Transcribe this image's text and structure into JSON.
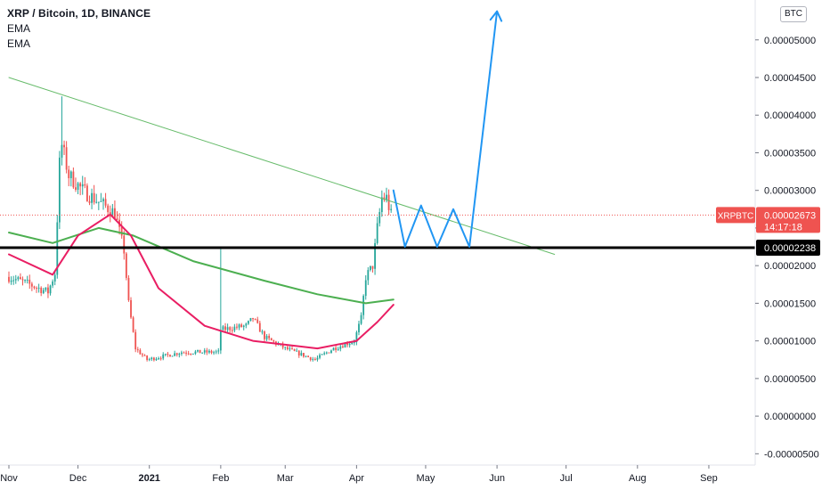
{
  "header": {
    "title": "XRP / Bitcoin, 1D, BINANCE",
    "indicators": [
      "EMA",
      "EMA"
    ],
    "currency": "BTC"
  },
  "price_scale": {
    "ticks": [
      "0.00005000",
      "0.00004500",
      "0.00004000",
      "0.00003500",
      "0.00003000",
      "0.00002500",
      "0.00002000",
      "0.00001500",
      "0.00001000",
      "0.00000500",
      "0.00000000",
      "-0.00000500"
    ],
    "last_price_label": "XRPBTC",
    "last_price": "0.00002673",
    "countdown": "14:17:18",
    "level_price": "0.00002238"
  },
  "time_scale": {
    "labels": [
      "Nov",
      "Dec",
      "2021",
      "Feb",
      "Mar",
      "Apr",
      "May",
      "Jun",
      "Jul",
      "Aug",
      "Sep"
    ]
  },
  "colors": {
    "up": "#26a69a",
    "down": "#ef5350",
    "ema_fast": "#e91e63",
    "ema_slow": "#4caf50",
    "trendline": "#66bb6a",
    "level": "#000000",
    "projection": "#2196f3",
    "price_line": "#ef5350"
  },
  "chart_data": {
    "type": "candlestick",
    "title": "XRP / Bitcoin, 1D, BINANCE",
    "y_unit": "BTC",
    "ylim": [
      -6.5e-06,
      5.53e-05
    ],
    "grid": false,
    "xlim": [
      "2020-11-01",
      "2021-09-25"
    ],
    "ohlc_anchors": [
      {
        "date": "2020-11-01",
        "close": 1.85e-05
      },
      {
        "date": "2020-11-10",
        "close": 1.75e-05
      },
      {
        "date": "2020-11-18",
        "close": 1.65e-05
      },
      {
        "date": "2020-11-21",
        "close": 1.9e-05
      },
      {
        "date": "2020-11-23",
        "close": 3.35e-05
      },
      {
        "date": "2020-11-24",
        "close": 3.6e-05
      },
      {
        "date": "2020-11-27",
        "close": 3.2e-05
      },
      {
        "date": "2020-12-03",
        "close": 3e-05
      },
      {
        "date": "2020-12-10",
        "close": 2.85e-05
      },
      {
        "date": "2020-12-17",
        "close": 2.7e-05
      },
      {
        "date": "2020-12-21",
        "close": 2.2e-05
      },
      {
        "date": "2020-12-23",
        "close": 1.5e-05
      },
      {
        "date": "2020-12-26",
        "close": 9e-06
      },
      {
        "date": "2020-12-31",
        "close": 7.5e-06
      },
      {
        "date": "2021-01-15",
        "close": 8.5e-06
      },
      {
        "date": "2021-01-31",
        "close": 8.5e-06
      },
      {
        "date": "2021-02-01",
        "close": 1.15e-05
      },
      {
        "date": "2021-02-12",
        "close": 1.2e-05
      },
      {
        "date": "2021-02-15",
        "close": 1.3e-05
      },
      {
        "date": "2021-02-20",
        "close": 1.05e-05
      },
      {
        "date": "2021-03-01",
        "close": 9e-06
      },
      {
        "date": "2021-03-14",
        "close": 7.5e-06
      },
      {
        "date": "2021-03-22",
        "close": 9e-06
      },
      {
        "date": "2021-03-31",
        "close": 1e-05
      },
      {
        "date": "2021-04-03",
        "close": 1.3e-05
      },
      {
        "date": "2021-04-05",
        "close": 1.85e-05
      },
      {
        "date": "2021-04-08",
        "close": 2e-05
      },
      {
        "date": "2021-04-10",
        "close": 2.5e-05
      },
      {
        "date": "2021-04-12",
        "close": 2.9e-05
      },
      {
        "date": "2021-04-14",
        "close": 2.9e-05
      },
      {
        "date": "2021-04-16",
        "close": 2.67e-05
      }
    ],
    "spikes": [
      {
        "date": "2020-11-24",
        "high": 4.25e-05
      },
      {
        "date": "2021-02-01",
        "high": 2.22e-05
      }
    ],
    "ema_fast": [
      {
        "date": "2020-11-01",
        "value": 2.15e-05
      },
      {
        "date": "2020-11-20",
        "value": 1.88e-05
      },
      {
        "date": "2020-12-01",
        "value": 2.4e-05
      },
      {
        "date": "2020-12-15",
        "value": 2.68e-05
      },
      {
        "date": "2020-12-24",
        "value": 2.4e-05
      },
      {
        "date": "2021-01-05",
        "value": 1.7e-05
      },
      {
        "date": "2021-01-25",
        "value": 1.2e-05
      },
      {
        "date": "2021-02-15",
        "value": 1e-05
      },
      {
        "date": "2021-03-15",
        "value": 9e-06
      },
      {
        "date": "2021-04-01",
        "value": 1e-05
      },
      {
        "date": "2021-04-10",
        "value": 1.25e-05
      },
      {
        "date": "2021-04-17",
        "value": 1.48e-05
      }
    ],
    "ema_slow": [
      {
        "date": "2020-11-01",
        "value": 2.44e-05
      },
      {
        "date": "2020-11-20",
        "value": 2.3e-05
      },
      {
        "date": "2020-12-10",
        "value": 2.5e-05
      },
      {
        "date": "2020-12-25",
        "value": 2.4e-05
      },
      {
        "date": "2021-01-20",
        "value": 2.06e-05
      },
      {
        "date": "2021-02-20",
        "value": 1.8e-05
      },
      {
        "date": "2021-03-15",
        "value": 1.62e-05
      },
      {
        "date": "2021-04-05",
        "value": 1.5e-05
      },
      {
        "date": "2021-04-17",
        "value": 1.55e-05
      }
    ],
    "trendline": [
      {
        "date": "2020-11-01",
        "value": 4.5e-05
      },
      {
        "date": "2021-06-26",
        "value": 2.15e-05
      }
    ],
    "horizontal_level": 2.238e-05,
    "last_price": 2.673e-05,
    "projection": [
      {
        "date": "2021-04-17",
        "value": 3e-05
      },
      {
        "date": "2021-04-22",
        "value": 2.25e-05
      },
      {
        "date": "2021-04-29",
        "value": 2.8e-05
      },
      {
        "date": "2021-05-06",
        "value": 2.25e-05
      },
      {
        "date": "2021-05-13",
        "value": 2.75e-05
      },
      {
        "date": "2021-05-20",
        "value": 2.25e-05
      },
      {
        "date": "2021-06-01",
        "value": 5.38e-05
      }
    ]
  }
}
